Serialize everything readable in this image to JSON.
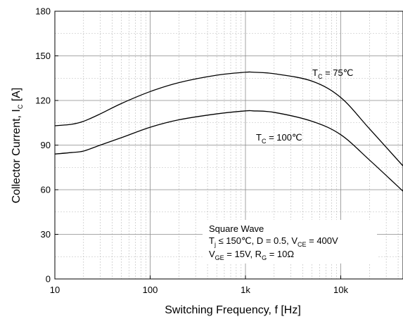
{
  "chart_data": {
    "type": "line",
    "title": "",
    "xlabel": "Switching Frequency, f [Hz]",
    "ylabel": {
      "main": "Collector Current, I",
      "sub": "C",
      "tail": " [A]"
    },
    "xscale": "log",
    "xlim": [
      10,
      45000
    ],
    "ylim": [
      0,
      180
    ],
    "grid": true,
    "x_tick_labels": [
      {
        "value": 10,
        "label": "10"
      },
      {
        "value": 100,
        "label": "100"
      },
      {
        "value": 1000,
        "label": "1k"
      },
      {
        "value": 10000,
        "label": "10k"
      }
    ],
    "y_tick_labels": [
      {
        "value": 0,
        "label": "0"
      },
      {
        "value": 30,
        "label": "30"
      },
      {
        "value": 60,
        "label": "60"
      },
      {
        "value": 90,
        "label": "90"
      },
      {
        "value": 120,
        "label": "120"
      },
      {
        "value": 150,
        "label": "150"
      },
      {
        "value": 180,
        "label": "180"
      }
    ],
    "series": [
      {
        "name": {
          "main": "T",
          "sub": "C",
          "tail": " = 75℃"
        },
        "x": [
          10,
          15,
          20,
          30,
          50,
          100,
          200,
          500,
          1000,
          1200,
          2000,
          5000,
          10000,
          20000,
          45000
        ],
        "y": [
          103,
          104,
          106,
          111,
          118,
          126,
          132,
          137,
          139,
          139,
          138,
          133,
          122,
          101,
          76
        ]
      },
      {
        "name": {
          "main": "T",
          "sub": "C",
          "tail": " = 100℃"
        },
        "x": [
          10,
          15,
          20,
          30,
          50,
          100,
          200,
          500,
          1000,
          1200,
          2000,
          5000,
          10000,
          20000,
          45000
        ],
        "y": [
          84,
          85,
          86,
          90,
          95,
          102,
          107,
          111,
          113,
          113,
          112,
          106,
          97,
          80,
          59
        ]
      }
    ],
    "annotation": {
      "line1": "Square Wave",
      "line2": [
        {
          "t": "T",
          "s": false
        },
        {
          "t": "j",
          "s": true
        },
        {
          "t": " ≤ 150℃, D = 0.5, V",
          "s": false
        },
        {
          "t": "CE",
          "s": true
        },
        {
          "t": " = 400V",
          "s": false
        }
      ],
      "line3": [
        {
          "t": "V",
          "s": false
        },
        {
          "t": "GE",
          "s": true
        },
        {
          "t": " = 15V, R",
          "s": false
        },
        {
          "t": "G",
          "s": true
        },
        {
          "t": " = 10Ω",
          "s": false
        }
      ]
    }
  }
}
